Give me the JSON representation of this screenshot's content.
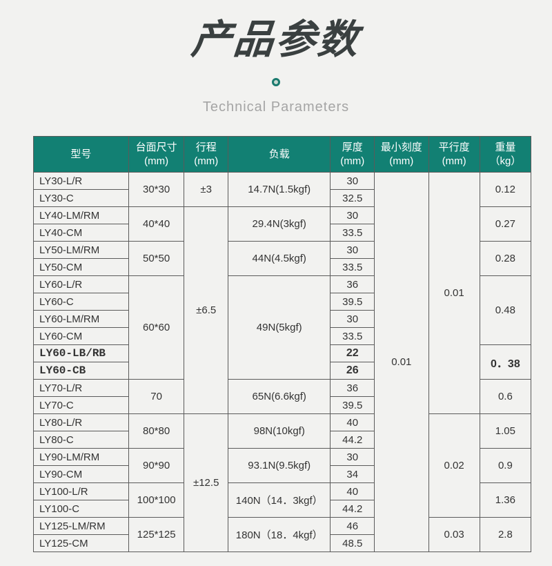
{
  "title": "产品参数",
  "subtitle": "Technical Parameters",
  "colors": {
    "header_bg": "#128073",
    "header_text": "#ffffff",
    "border": "#5a5a5a",
    "page_bg": "#f2f2f0",
    "title_color": "#3a4040",
    "subtitle_color": "#a5a5a5"
  },
  "headers": {
    "model": "型号",
    "size": "台面尺寸\n(mm)",
    "stroke": "行程\n(mm)",
    "load": "负载",
    "thick": "厚度\n(mm)",
    "scale": "最小刻度\n(mm)",
    "para": "平行度\n(mm)",
    "weight": "重量\n（kg）"
  },
  "d": {
    "m1": "LY30-L/R",
    "m2": "LY30-C",
    "m3": "LY40-LM/RM",
    "m4": "LY40-CM",
    "m5": "LY50-LM/RM",
    "m6": "LY50-CM",
    "m7": "LY60-L/R",
    "m8": "LY60-C",
    "m9": "LY60-LM/RM",
    "m10": "LY60-CM",
    "m11": "LY60-LB/RB",
    "m12": "LY60-CB",
    "m13": "LY70-L/R",
    "m14": "LY70-C",
    "m15": "LY80-L/R",
    "m16": "LY80-C",
    "m17": "LY90-LM/RM",
    "m18": "LY90-CM",
    "m19": "LY100-L/R",
    "m20": "LY100-C",
    "m21": "LY125-LM/RM",
    "m22": "LY125-CM",
    "s1": "30*30",
    "s2": "40*40",
    "s3": "50*50",
    "s4": "60*60",
    "s5": "70",
    "s6": "80*80",
    "s7": "90*90",
    "s8": "100*100",
    "s9": "125*125",
    "st1": "±3",
    "st2": "±6.5",
    "st3": "±12.5",
    "l1": "14.7N(1.5kgf)",
    "l2": "29.4N(3kgf)",
    "l3": "44N(4.5kgf)",
    "l4": "49N(5kgf)",
    "l5": "65N(6.6kgf)",
    "l6": "98N(10kgf)",
    "l7": "93.1N(9.5kgf)",
    "l8": "140N（14．3kgf）",
    "l9": "180N（18．4kgf）",
    "t1": "30",
    "t2": "32.5",
    "t3": "30",
    "t4": "33.5",
    "t5": "30",
    "t6": "33.5",
    "t7": "36",
    "t8": "39.5",
    "t9": "30",
    "t10": "33.5",
    "t11": "22",
    "t12": "26",
    "t13": "36",
    "t14": "39.5",
    "t15": "40",
    "t16": "44.2",
    "t17": "30",
    "t18": "34",
    "t19": "40",
    "t20": "44.2",
    "t21": "46",
    "t22": "48.5",
    "sc1": "0.01",
    "p1": "0.01",
    "p2": "0.02",
    "p3": "0.03",
    "w1": "0.12",
    "w2": "0.27",
    "w3": "0.28",
    "w4": "0.48",
    "w5": "0．38",
    "w6": "0.6",
    "w7": "1.05",
    "w8": "0.9",
    "w9": "1.36",
    "w10": "2.8"
  }
}
